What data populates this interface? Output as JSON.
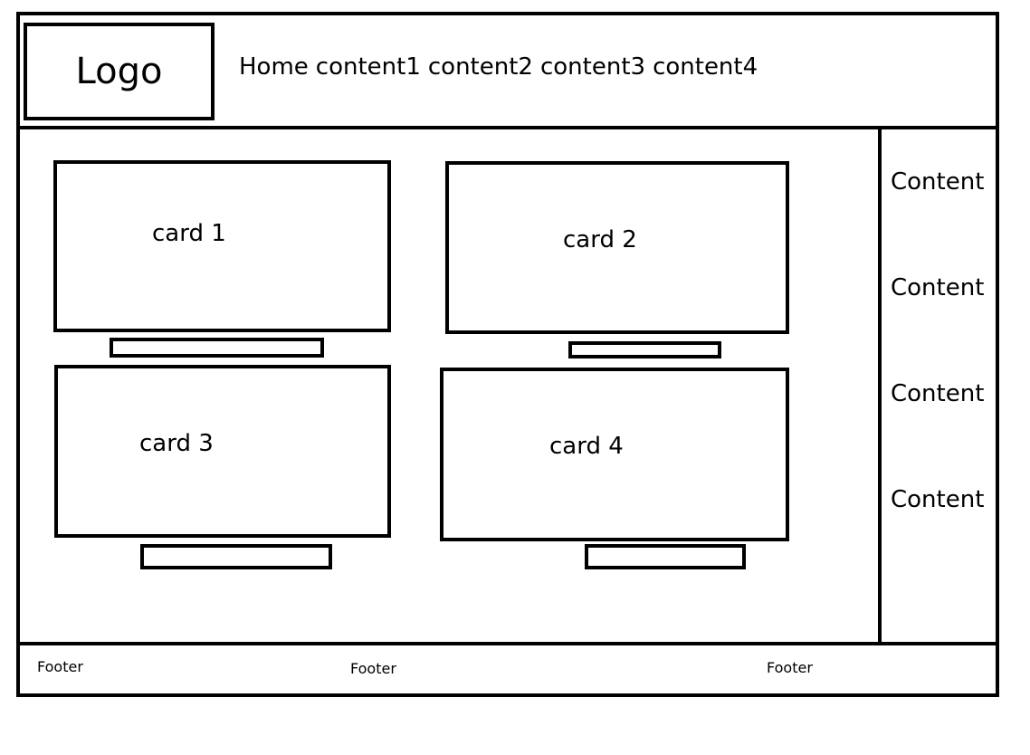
{
  "header": {
    "logo": "Logo",
    "nav": [
      "Home",
      "content1",
      "content2",
      "content3",
      "content4"
    ]
  },
  "main": {
    "cards": [
      {
        "label": "card 1"
      },
      {
        "label": "card 2"
      },
      {
        "label": "card 3"
      },
      {
        "label": "card 4"
      }
    ]
  },
  "sidebar": {
    "items": [
      "Content",
      "Content",
      "Content",
      "Content"
    ]
  },
  "footer": {
    "items": [
      "Footer",
      "Footer",
      "Footer"
    ]
  }
}
